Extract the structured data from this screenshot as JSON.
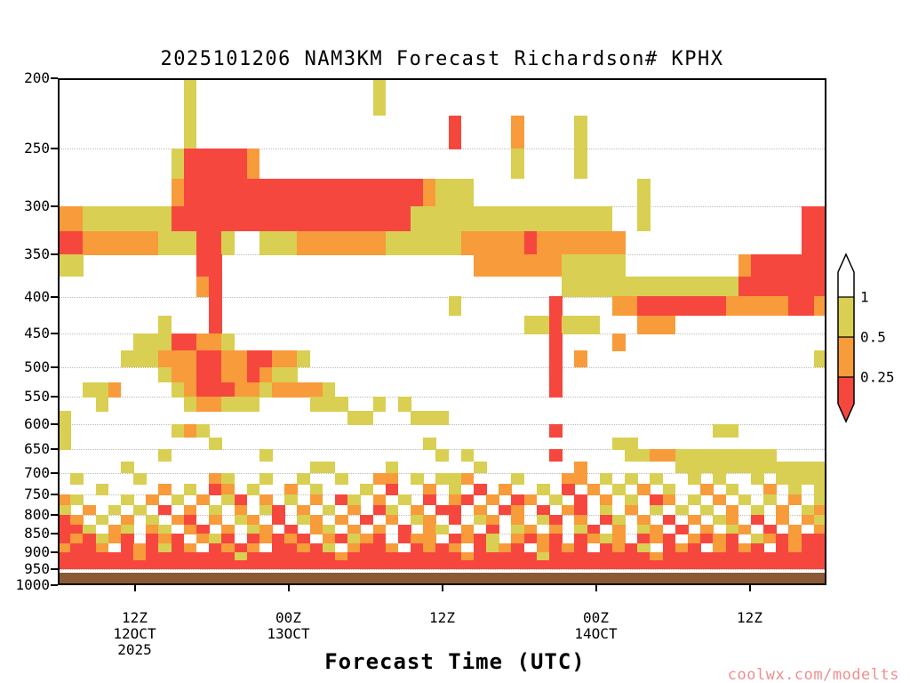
{
  "watermark": "coolwx.com/modelts",
  "colors": {
    "yellow": "#d9cf52",
    "orange": "#f79b3b",
    "red": "#f6473f",
    "ground_brown": "#8a5a36",
    "watermark_pink": "#ef8f8f",
    "axis_black": "#000000",
    "gridline_gray": "#bdbdbd",
    "colorbar_white": "#ffffff"
  },
  "chart_data": {
    "type": "heatmap",
    "title": "2025101206 NAM3KM Forecast Richardson# KPHX",
    "xlabel": "Forecast Time (UTC)",
    "x_axis": {
      "range_hours": [
        0,
        60
      ],
      "ticks": [
        {
          "hour": 6,
          "label": "12Z",
          "sub": "12OCT",
          "sub2": "2025"
        },
        {
          "hour": 18,
          "label": "00Z",
          "sub": "13OCT",
          "sub2": ""
        },
        {
          "hour": 30,
          "label": "12Z",
          "sub": "",
          "sub2": ""
        },
        {
          "hour": 42,
          "label": "00Z",
          "sub": "14OCT",
          "sub2": ""
        },
        {
          "hour": 54,
          "label": "12Z",
          "sub": "",
          "sub2": ""
        }
      ]
    },
    "y_axis": {
      "scale": "log-pressure",
      "range_hpa": [
        200,
        1000
      ],
      "ticks": [
        200,
        250,
        300,
        350,
        400,
        450,
        500,
        550,
        600,
        650,
        700,
        750,
        800,
        850,
        900,
        950,
        1000
      ],
      "gridlines_hpa": [
        250,
        300,
        350,
        400,
        450,
        500,
        550,
        600,
        650,
        700,
        750,
        800,
        850,
        900,
        950
      ]
    },
    "legend": {
      "labels": [
        "1",
        "0.5",
        "0.25"
      ],
      "segment_order_top_to_bottom": [
        "white",
        "yellow",
        "orange",
        "red"
      ]
    },
    "levels": {
      "top_hpa": 200,
      "step_hpa": 25
    },
    "cell_key": {
      ".": "none",
      "Y": "Ri <= 1",
      "O": "Ri <= 0.5",
      "R": "Ri <= 0.25"
    },
    "ground": {
      "from_hpa": 962,
      "to_hpa": 1000
    },
    "grid_rows": [
      "..........Y..............Y...................................",
      "..........Y....................R....O....Y...................",
      ".........YRRRRRO....................Y....Y...................",
      ".........ORRRRRRRRRRRRRRRRRRROYYY.............Y..............",
      "OOYYYYYYYRRRRRRRRRRRRRRRRRRRYYYYYYYYYYYYYYYY..Y............RR",
      "RROOOOOOYYYRRY..YYYOOOOOOOYYYYYYOOOOOROOOOOOO..............RR",
      "YY.........RR....................OOOOOOOYYYYY.........ORRRRRR",
      "...........OR...........................YYYYYYYYYYYYYYRRRRRRR",
      "............R..................Y.......R....OORRRRRRROOOOORRO",
      "........Y...R........................YYRYYY...OOO............",
      "......YYYRROOY.........................R....O................",
      ".....YYYOOORROORROOY...................R.O..................Y",
      "........YOORROOROYY....................R.....................",
      "..YYO....YORRROOYOOOOY.................R.....................",
      "...Y......YOOYYY....YYY..Y.Y.................................",
      "Y......................YY...YYY..............................",
      "Y........YOY...........................R............YY.......",
      "Y...........Y................Y..............YY..............",
      "........Y.......Y.............Y.Y......R.....YYOOYYYYYYYY....",
      ".....Y..............YY....Y......Y.......O.......YYYYYYYYYYYY",
      ".Y....Y.....OY..Y..Y..Y..OO.Y.YYO...Y...OO.Y.Y.Y..Y.Y..Y.YYYY",
      "...Y....O.Y.RO.Y..O.Y...Y.R..O.Y.R.O..Y.R.O.Y.O.Y..O.Y..O.Y.Y",
      "OY...Y.O.Y.O.YR.O.Y.O.RY.O.Y.R.OR.O.RO.Y.R.O.Y.RO.Y.O.Y.Y.O.Y",
      "Y.O.Y.Y.R.O.Y.O.YR.O.Y.O.RY.O.RR.O.RO.R.OR.Y.O.Y.Y.Y.O.Y.O.YO",
      "RO.Y.O.Y.OR.O.YO.R.YO.O.R.O.YO.R.YO.O.YR.O.RY.O.R.O.YO.R.O.OY",
      "RRY.OY.OY.OR.O.YO.R.OY.O.O.R.OY.O.R.YO.O.YR.O.YO.R.O.YO.R.O.O",
      "RORYOR.ROR.OYR.ROROR.ORYOR.ROO.RORY.OROR.ROYO.ROR.OROR.YORORR",
      "ORRO.RORYRO.RORO.RRORY.ORRO.RORO.RYOR.OROR.RORY.ROR.OROR.RORR",
      "RRRRRRORRRRRRRYRRRRRRRORRRRRRRRRORRRRRYRRRRRRRRORRRRRRRRRRRRR",
      "RRRRRRRRRRRRRRRRRRRRRRRRRRRRRRRRRRRRRRRRRRRRRRRRRRRRRRRRRRRRR"
    ]
  }
}
